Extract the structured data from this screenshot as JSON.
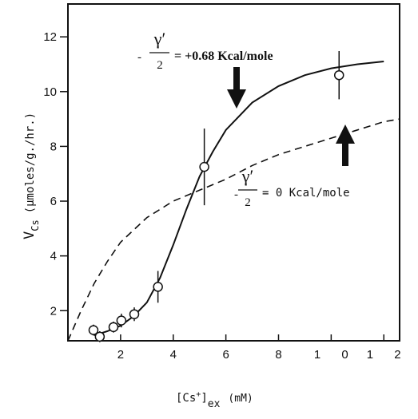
{
  "chart_data": {
    "type": "line",
    "ylabel": "V",
    "ylabel_sub": "Cs",
    "ylabel_unit": "(µmoles/g./hr.)",
    "xlabel": "[Cs",
    "xlabel_sup": "+",
    "xlabel_close": "]",
    "xlabel_sub": "ex",
    "xlabel_unit": "(mM)",
    "xlim": [
      0,
      12.6
    ],
    "ylim": [
      0.9,
      13.2
    ],
    "xticks": [
      2,
      4,
      6,
      8,
      {
        "value": 10,
        "label": "1 0"
      },
      {
        "value": 12,
        "label": "1 2"
      }
    ],
    "yticks": [
      2,
      4,
      6,
      8,
      10,
      12
    ],
    "color": "#111111",
    "series": [
      {
        "style": "solid",
        "x": [
          1,
          1.5,
          2,
          2.5,
          3,
          3.5,
          4,
          4.5,
          5,
          5.5,
          6,
          7,
          8,
          9,
          10,
          11,
          12
        ],
        "values": [
          1.1,
          1.25,
          1.45,
          1.8,
          2.3,
          3.2,
          4.4,
          5.7,
          6.9,
          7.8,
          8.6,
          9.6,
          10.2,
          10.6,
          10.85,
          11.0,
          11.1
        ]
      },
      {
        "style": "dashed",
        "x": [
          0,
          0.5,
          1,
          1.5,
          2,
          3,
          4,
          5,
          6,
          7,
          8,
          9,
          10,
          11,
          12,
          12.6
        ],
        "values": [
          0.9,
          2.0,
          3.0,
          3.8,
          4.5,
          5.4,
          6.0,
          6.4,
          6.8,
          7.3,
          7.7,
          8.0,
          8.3,
          8.6,
          8.9,
          9.0
        ]
      }
    ],
    "points": {
      "x": [
        0.97,
        1.21,
        1.73,
        2.03,
        2.52,
        3.42,
        5.18,
        10.3
      ],
      "values": [
        1.29,
        1.05,
        1.4,
        1.64,
        1.87,
        2.87,
        7.25,
        10.6
      ],
      "errors": [
        0.2,
        0.2,
        0.2,
        0.25,
        0.25,
        0.58,
        1.4,
        0.88
      ]
    },
    "annotations": [
      {
        "minus": "-",
        "numerator": "γ′",
        "denominator": "2",
        "text": "= +0.68 Kcal/mole"
      },
      {
        "minus": "-",
        "numerator": "γ′",
        "denominator": "2",
        "text": "= 0 Kcal/mole"
      }
    ]
  }
}
